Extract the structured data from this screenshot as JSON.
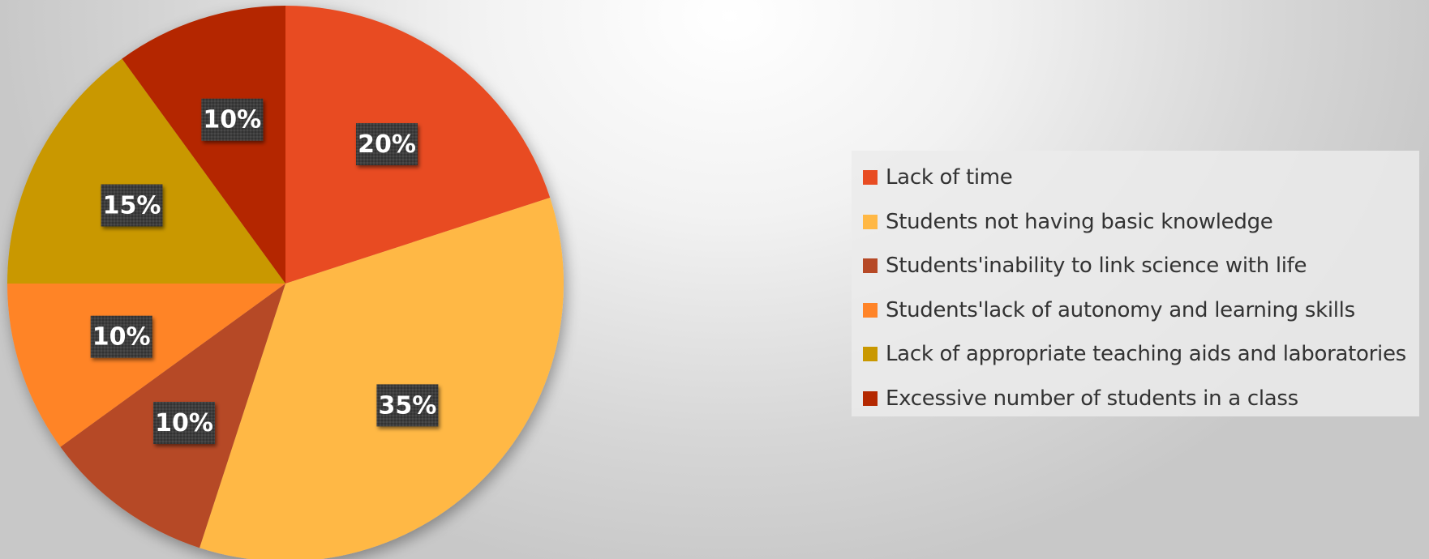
{
  "chart_data": {
    "type": "pie",
    "title": "",
    "start_angle_deg": 0,
    "direction": "clockwise",
    "legend_position": "right",
    "slices": [
      {
        "label": "Lack of time",
        "value": 20,
        "display": "20%",
        "color": "#E84C22"
      },
      {
        "label": "Students not having basic knowledge",
        "value": 35,
        "display": "35%",
        "color": "#FFB845"
      },
      {
        "label": "Students'inability to link science with life",
        "value": 10,
        "display": "10%",
        "color": "#B64926"
      },
      {
        "label": "Students'lack of autonomy and learning skills",
        "value": 10,
        "display": "10%",
        "color": "#FF8428"
      },
      {
        "label": "Lack of appropriate teaching aids and laboratories",
        "value": 15,
        "display": "15%",
        "color": "#C99800"
      },
      {
        "label": "Excessive number of students in a class",
        "value": 10,
        "display": "10%",
        "color": "#B42800"
      }
    ]
  }
}
